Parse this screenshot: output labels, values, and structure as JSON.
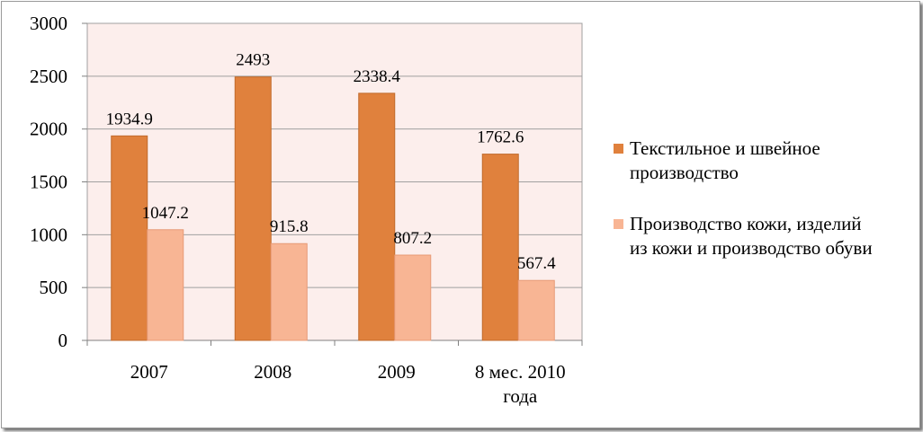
{
  "chart_data": {
    "type": "bar",
    "categories": [
      "2007",
      "2008",
      "2009",
      "8 мес. 2010 года"
    ],
    "category_lines": [
      [
        "2007"
      ],
      [
        "2008"
      ],
      [
        "2009"
      ],
      [
        "8 мес. 2010",
        "года"
      ]
    ],
    "series": [
      {
        "name": "Текстильное и швейное производство",
        "values": [
          1934.9,
          2493,
          2338.4,
          1762.6
        ],
        "labels": [
          "1934.9",
          "2493",
          "2338.4",
          "1762.6"
        ],
        "color": "#e0813d"
      },
      {
        "name": "Производство кожи, изделий из кожи и производство обуви",
        "values": [
          1047.2,
          915.8,
          807.2,
          567.4
        ],
        "labels": [
          "1047.2",
          "915.8",
          "807.2",
          "567.4"
        ],
        "color": "#f8b594"
      }
    ],
    "yticks": [
      0,
      500,
      1000,
      1500,
      2000,
      2500,
      3000
    ],
    "ylim": [
      0,
      3000
    ],
    "plot_background": "#fceeec",
    "grid": true,
    "legend": "right",
    "xlabel": "",
    "ylabel": "",
    "title": ""
  }
}
